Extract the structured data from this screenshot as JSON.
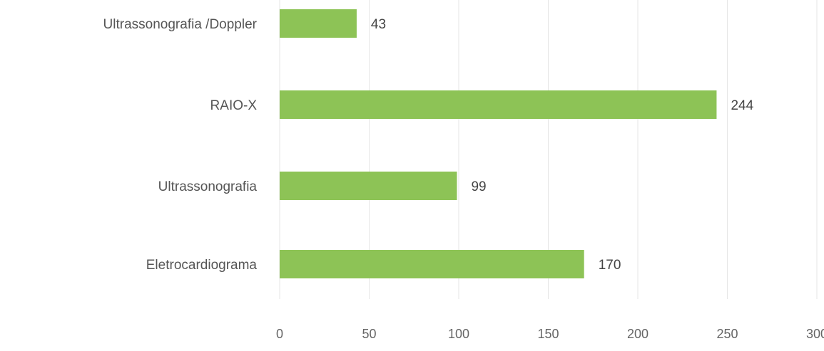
{
  "chart_data": {
    "type": "bar",
    "orientation": "horizontal",
    "categories": [
      "Ultrassonografia /Doppler",
      "RAIO-X",
      "Ultrassonografia",
      "Eletrocardiograma"
    ],
    "values": [
      43,
      244,
      99,
      170
    ],
    "value_labels": [
      "43",
      "244",
      "99",
      "170"
    ],
    "xlim": [
      0,
      300
    ],
    "xticks": [
      0,
      50,
      100,
      150,
      200,
      250,
      300
    ],
    "xtick_labels": [
      "0",
      "50",
      "100",
      "150",
      "200",
      "250",
      "300"
    ],
    "grid": true,
    "legend": "none",
    "title": "",
    "xlabel": "",
    "ylabel": "",
    "colors": {
      "bar": "#8dc356",
      "grid": "#e6e6e6"
    }
  }
}
